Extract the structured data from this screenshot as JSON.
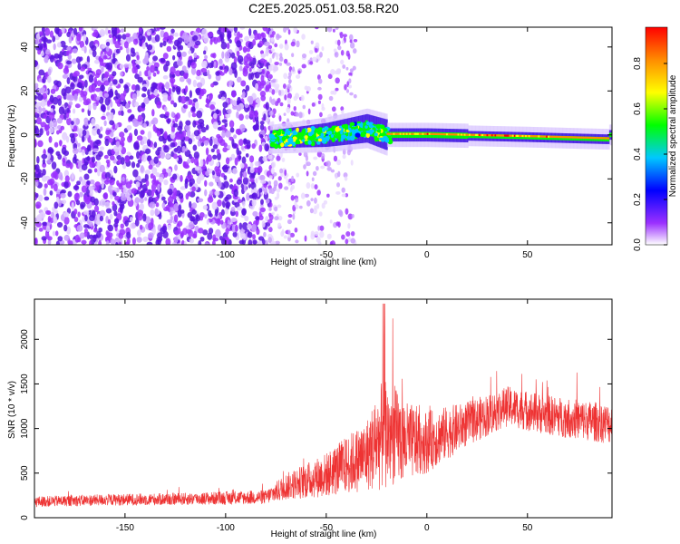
{
  "title": "C2E5.2025.051.03.58.R20",
  "chart_data": [
    {
      "type": "heatmap",
      "xlabel": "Height of straight line (km)",
      "ylabel": "Frequency (Hz)",
      "xlim": [
        -195,
        92
      ],
      "ylim": [
        -50,
        49
      ],
      "xticks": [
        -150,
        -100,
        -50,
        0,
        50
      ],
      "yticks": [
        -40,
        -20,
        0,
        20,
        40
      ],
      "colorbar": {
        "label": "Normalized spectral amplitude",
        "range": [
          0,
          0.96
        ],
        "ticks": [
          0.0,
          0.2,
          0.4,
          0.6,
          0.8
        ],
        "colors": [
          "#ffffff",
          "#9b30ff",
          "#0000ff",
          "#00c8ff",
          "#00ff00",
          "#ffff00",
          "#ff8c00",
          "#ff0000"
        ]
      },
      "features": {
        "noise_region_x": [
          -195,
          -78
        ],
        "fading_noise_x": [
          -78,
          -35
        ],
        "signal_band": [
          {
            "x": -78,
            "freq": -2
          },
          {
            "x": -50,
            "freq": 0
          },
          {
            "x": -30,
            "freq": 3
          },
          {
            "x": -20,
            "freq": 0
          },
          {
            "x": 0,
            "freq": 0
          },
          {
            "x": 50,
            "freq": -1
          },
          {
            "x": 90,
            "freq": -2
          }
        ]
      }
    },
    {
      "type": "line",
      "xlabel": "Height of straight line (km)",
      "ylabel": "SNR (10 * v/v)",
      "xlim": [
        -195,
        92
      ],
      "ylim": [
        0,
        2450
      ],
      "xticks": [
        -150,
        -100,
        -50,
        0,
        50
      ],
      "yticks": [
        0,
        500,
        1000,
        1500,
        2000
      ],
      "color": "#ee3333",
      "envelope": [
        {
          "x": -195,
          "mean": 180,
          "spread": 120
        },
        {
          "x": -160,
          "mean": 200,
          "spread": 130
        },
        {
          "x": -120,
          "mean": 210,
          "spread": 140
        },
        {
          "x": -80,
          "mean": 230,
          "spread": 160
        },
        {
          "x": -70,
          "mean": 350,
          "spread": 300
        },
        {
          "x": -50,
          "mean": 480,
          "spread": 500
        },
        {
          "x": -30,
          "mean": 700,
          "spread": 800
        },
        {
          "x": -21,
          "mean": 950,
          "spread": 1300
        },
        {
          "x": -10,
          "mean": 850,
          "spread": 900
        },
        {
          "x": 0,
          "mean": 850,
          "spread": 700
        },
        {
          "x": 20,
          "mean": 1050,
          "spread": 500
        },
        {
          "x": 40,
          "mean": 1250,
          "spread": 450
        },
        {
          "x": 60,
          "mean": 1150,
          "spread": 450
        },
        {
          "x": 92,
          "mean": 1050,
          "spread": 450
        }
      ]
    }
  ]
}
